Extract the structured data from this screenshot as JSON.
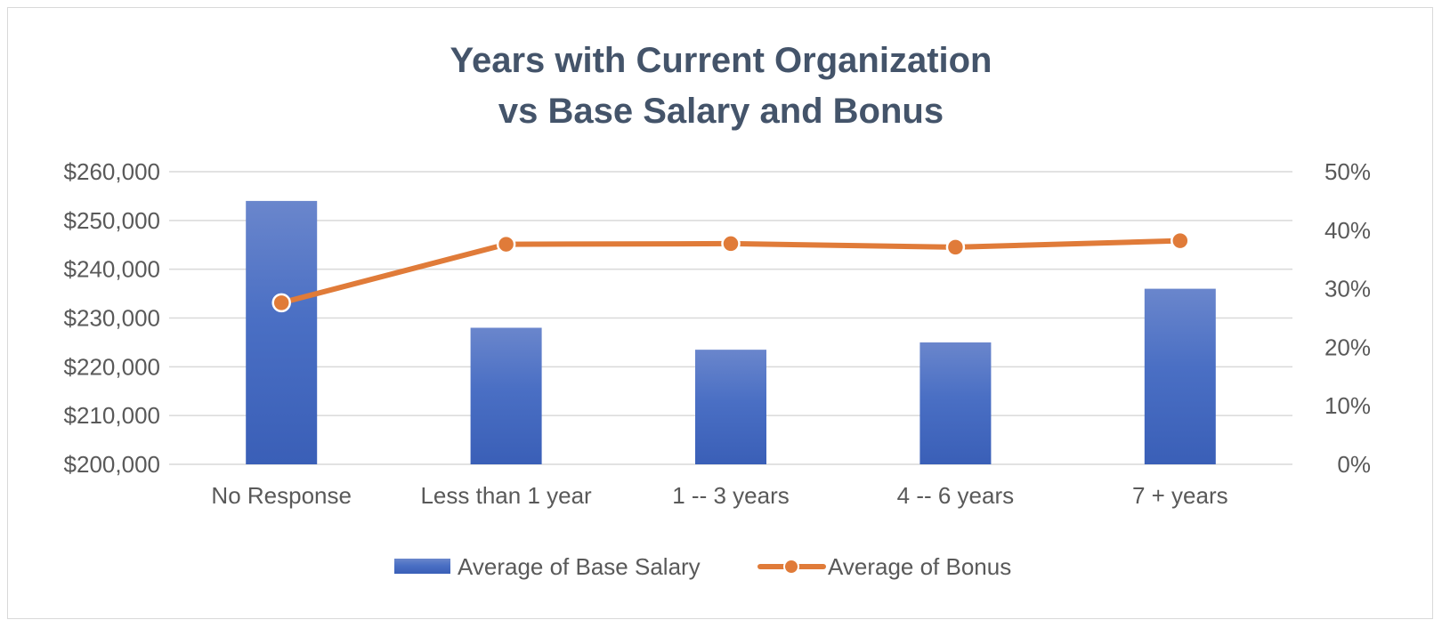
{
  "chart_data": {
    "type": "bar",
    "title": [
      "Years with Current Organization",
      "vs Base Salary and Bonus"
    ],
    "categories": [
      "No Response",
      "Less than 1 year",
      "1 -- 3 years",
      "4 -- 6 years",
      "7 + years"
    ],
    "series": [
      {
        "name": "Average of Base Salary",
        "type": "bar",
        "axis": "left",
        "values": [
          254000,
          228000,
          223500,
          225000,
          236000
        ]
      },
      {
        "name": "Average of Bonus",
        "type": "line",
        "axis": "right",
        "values": [
          27.6,
          37.6,
          37.7,
          37.1,
          38.2
        ]
      }
    ],
    "y_left": {
      "range": [
        200000,
        260000
      ],
      "ticks": [
        200000,
        210000,
        220000,
        230000,
        240000,
        250000,
        260000
      ],
      "tick_labels": [
        "$200,000",
        "$210,000",
        "$220,000",
        "$230,000",
        "$240,000",
        "$250,000",
        "$260,000"
      ]
    },
    "y_right": {
      "range": [
        0,
        50
      ],
      "ticks": [
        0,
        10,
        20,
        30,
        40,
        50
      ],
      "tick_labels": [
        "0%",
        "10%",
        "20%",
        "30%",
        "40%",
        "50%"
      ]
    },
    "xlabel": "",
    "ylabel": "",
    "grid": true,
    "legend_position": "bottom",
    "colors": {
      "bar_top": "#6a86cc",
      "bar_bottom": "#3a5fb7",
      "line": "#e07b39",
      "grid": "#d9d9d9",
      "title": "#44546a",
      "text": "#595959"
    }
  }
}
